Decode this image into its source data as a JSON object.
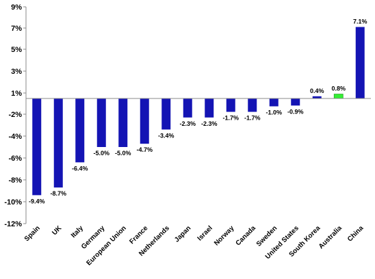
{
  "chart_data": {
    "type": "bar",
    "title": "",
    "xlabel": "",
    "ylabel": "",
    "ylim": [
      -12,
      9
    ],
    "grid": false,
    "legend": "none",
    "y_ticks": [
      {
        "value": 9,
        "label": "9%"
      },
      {
        "value": 7,
        "label": "7%"
      },
      {
        "value": 5,
        "label": "5%"
      },
      {
        "value": 3,
        "label": "3%"
      },
      {
        "value": 1,
        "label": "1%"
      },
      {
        "value": -2,
        "label": "-2%"
      },
      {
        "value": -4,
        "label": "-4%"
      },
      {
        "value": -6,
        "label": "-6%"
      },
      {
        "value": -8,
        "label": "-8%"
      },
      {
        "value": -10,
        "label": "-10%"
      },
      {
        "value": -12,
        "label": "-12%"
      }
    ],
    "categories": [
      "Spain",
      "UK",
      "Italy",
      "Germany",
      "European Union",
      "France",
      "Netherlands",
      "Japan",
      "Israel",
      "Norway",
      "Canada",
      "Sweden",
      "United States",
      "South Korea",
      "Australia",
      "China"
    ],
    "values": [
      -9.4,
      -8.7,
      -6.4,
      -5.0,
      -5.0,
      -4.7,
      -3.4,
      -2.3,
      -2.3,
      -1.7,
      -1.7,
      -1.0,
      -0.9,
      0.4,
      0.8,
      7.1
    ],
    "value_labels": [
      "-9.4%",
      "-8.7%",
      "-6.4%",
      "-5.0%",
      "-5.0%",
      "-4.7%",
      "-3.4%",
      "-2.3%",
      "-2.3%",
      "-1.7%",
      "-1.7%",
      "-1.0%",
      "-0.9%",
      "0.4%",
      "0.8%",
      "7.1%"
    ],
    "colors": {
      "default_bar": "#1414b4",
      "highlight_bar": "#33ee33",
      "axis": "#888888"
    },
    "highlight_category": "Australia"
  }
}
